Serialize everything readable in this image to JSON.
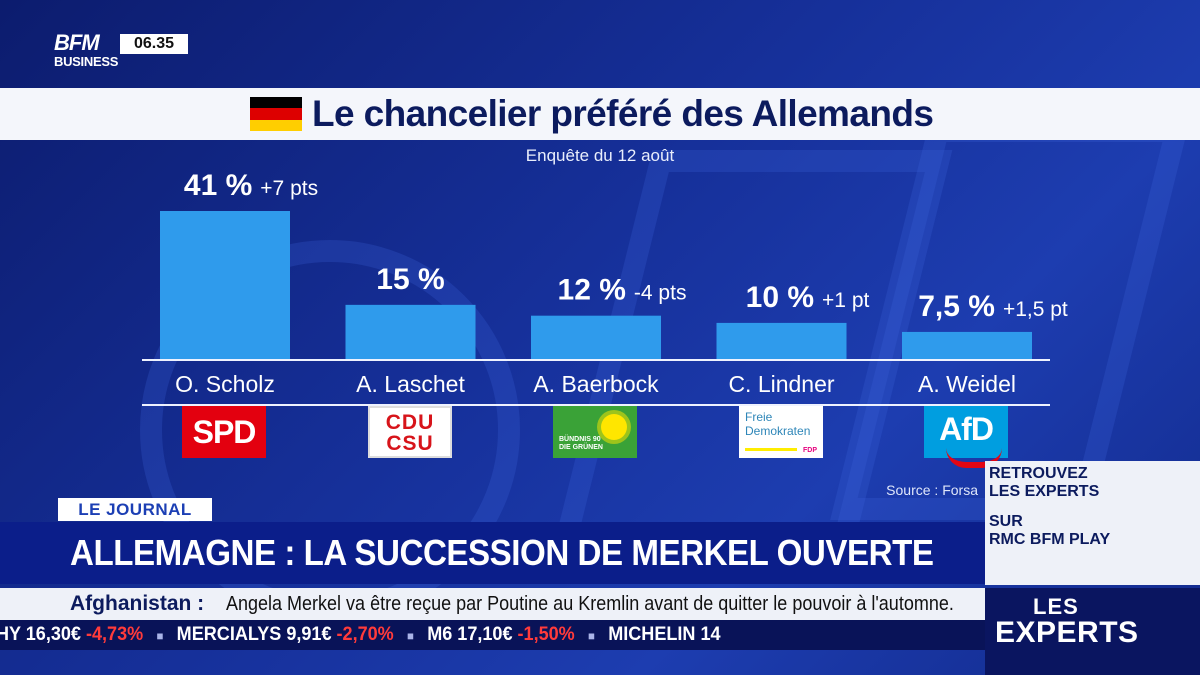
{
  "channel": {
    "logo_line1": "BFM",
    "logo_line2": "BUSINESS",
    "clock": "06.35"
  },
  "title": "Le chancelier préféré des Allemands",
  "subtitle": "Enquête du 12 août",
  "source": "Source : Forsa",
  "colors": {
    "bar": "#2f9bec",
    "flag": [
      "#000000",
      "#dd0000",
      "#ffce00"
    ]
  },
  "chart_data": {
    "type": "bar",
    "title": "Le chancelier préféré des Allemands",
    "categories": [
      "O. Scholz",
      "A. Laschet",
      "A. Baerbock",
      "C. Lindner",
      "A. Weidel"
    ],
    "values": [
      41,
      15,
      12,
      10,
      7.5
    ],
    "value_labels": [
      "41 %",
      "15 %",
      "12 %",
      "10 %",
      "7,5 %"
    ],
    "changes": [
      "+7 pts",
      "",
      "-4 pts",
      "+1 pt",
      "+1,5 pt"
    ],
    "parties": [
      "SPD",
      "CDU CSU",
      "BÜNDNIS 90 DIE GRÜNEN",
      "Freie Demokraten FDP",
      "AfD"
    ],
    "xlabel": "",
    "ylabel": "",
    "ylim": [
      0,
      41
    ],
    "grid": false
  },
  "parties": {
    "spd": "SPD",
    "cdu1": "CDU",
    "cdu2": "CSU",
    "gruene1": "BÜNDNIS 90",
    "gruene2": "DIE GRÜNEN",
    "fdp1": "Freie",
    "fdp2": "Demokraten",
    "fdp3": "FDP",
    "afd": "AfD"
  },
  "banner": {
    "tag": "LE JOURNAL",
    "headline": "ALLEMAGNE : LA SUCCESSION DE MERKEL OUVERTE",
    "ticker_label": "Afghanistan :",
    "ticker_text": "Angela Merkel va être reçue par Poutine au Kremlin avant de quitter le pouvoir à l'automne."
  },
  "stocks": [
    {
      "name": "HY",
      "price": "16,30€",
      "change": "-4,73%"
    },
    {
      "name": "MERCIALYS",
      "price": "9,91€",
      "change": "-2,70%"
    },
    {
      "name": "M6",
      "price": "17,10€",
      "change": "-1,50%"
    },
    {
      "name": "MICHELIN",
      "price": "14",
      "change": ""
    }
  ],
  "promo": {
    "line1": "RETROUVEZ",
    "line2": "LES EXPERTS",
    "line3": "SUR",
    "line4": "RMC BFM PLAY"
  },
  "show": {
    "line1": "LES",
    "line2": "EXPERTS"
  }
}
